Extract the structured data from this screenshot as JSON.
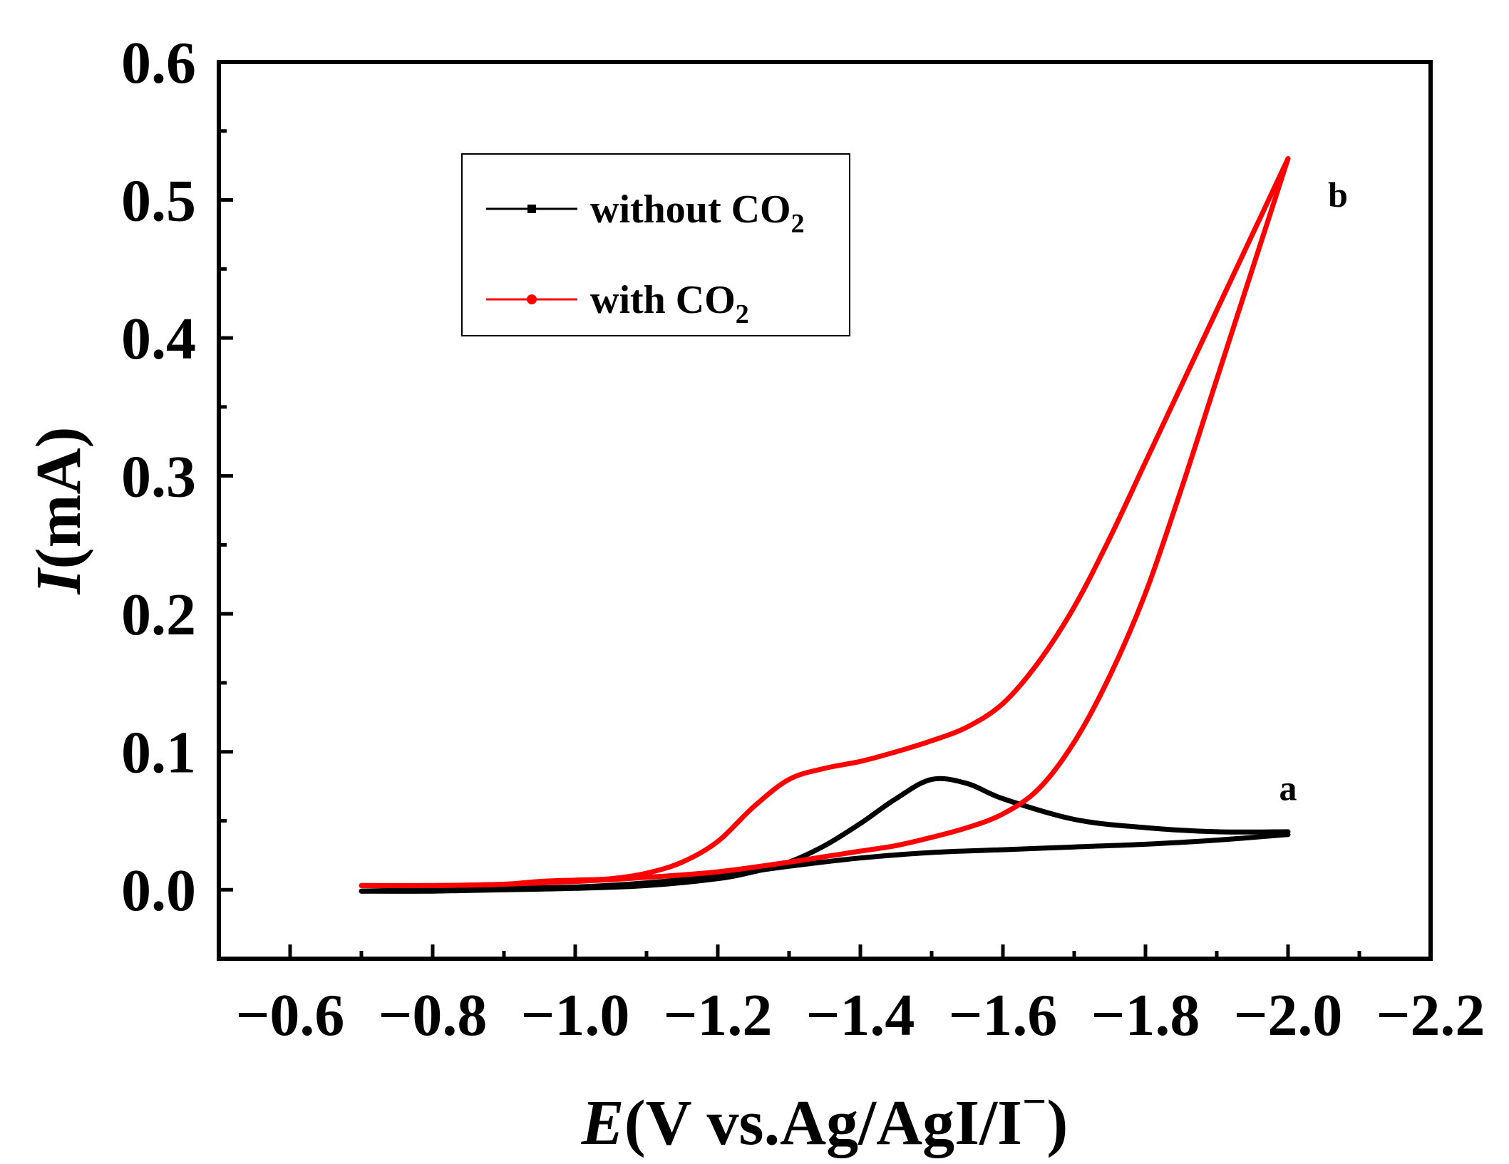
{
  "chart_data": {
    "type": "line",
    "title": "",
    "xlabel": {
      "italic": "E",
      "rest": "(V vs.Ag/AgI/I",
      "sup": "−",
      "close": ")"
    },
    "ylabel": {
      "italic": "I",
      "rest": "(mA)"
    },
    "xlim": [
      -0.5,
      -2.2
    ],
    "ylim": [
      -0.05,
      0.6
    ],
    "x_ticks": [
      -0.6,
      -0.8,
      -1.0,
      -1.2,
      -1.4,
      -1.6,
      -1.8,
      -2.0,
      -2.2
    ],
    "x_tick_labels": [
      "−0.6",
      "−0.8",
      "−1.0",
      "−1.2",
      "−1.4",
      "−1.6",
      "−1.8",
      "−2.0",
      "−2.2"
    ],
    "y_ticks": [
      0.0,
      0.1,
      0.2,
      0.3,
      0.4,
      0.5,
      0.6
    ],
    "y_tick_labels": [
      "0.0",
      "0.1",
      "0.2",
      "0.3",
      "0.4",
      "0.5",
      "0.6"
    ],
    "grid": false,
    "legend": {
      "placement": "top-center",
      "entries": [
        {
          "text": "without CO",
          "sub": "2",
          "series": "without"
        },
        {
          "text": "with CO",
          "sub": "2",
          "series": "with"
        }
      ]
    },
    "series": [
      {
        "name": "without CO2",
        "label": "a",
        "color": "#000000",
        "forward": {
          "x": [
            -0.7,
            -0.8,
            -0.9,
            -1.0,
            -1.1,
            -1.2,
            -1.25,
            -1.3,
            -1.35,
            -1.4,
            -1.45,
            -1.5,
            -1.55,
            -1.6,
            -1.7,
            -1.8,
            -1.9,
            -2.0
          ],
          "y": [
            -0.001,
            -0.001,
            0.0,
            0.001,
            0.003,
            0.008,
            0.013,
            0.02,
            0.032,
            0.048,
            0.066,
            0.08,
            0.077,
            0.066,
            0.051,
            0.045,
            0.042,
            0.042
          ]
        },
        "reverse": {
          "x": [
            -2.0,
            -1.9,
            -1.8,
            -1.7,
            -1.6,
            -1.5,
            -1.4,
            -1.3,
            -1.2,
            -1.1,
            -1.0,
            -0.9,
            -0.8,
            -0.7
          ],
          "y": [
            0.04,
            0.036,
            0.033,
            0.031,
            0.029,
            0.027,
            0.023,
            0.017,
            0.01,
            0.005,
            0.002,
            0.001,
            0.0,
            -0.001
          ]
        }
      },
      {
        "name": "with CO2",
        "label": "b",
        "color": "#ff0000",
        "forward": {
          "x": [
            -0.7,
            -0.8,
            -0.9,
            -0.95,
            -1.0,
            -1.05,
            -1.1,
            -1.15,
            -1.2,
            -1.25,
            -1.3,
            -1.35,
            -1.4,
            -1.45,
            -1.5,
            -1.55,
            -1.6,
            -1.65,
            -1.7,
            -1.75,
            -1.8,
            -1.85,
            -1.9,
            -1.95,
            -2.0
          ],
          "y": [
            0.003,
            0.003,
            0.004,
            0.006,
            0.007,
            0.008,
            0.012,
            0.02,
            0.035,
            0.06,
            0.08,
            0.088,
            0.093,
            0.1,
            0.108,
            0.118,
            0.135,
            0.165,
            0.205,
            0.255,
            0.31,
            0.365,
            0.42,
            0.475,
            0.53
          ]
        },
        "reverse": {
          "x": [
            -2.0,
            -1.95,
            -1.9,
            -1.85,
            -1.8,
            -1.75,
            -1.7,
            -1.65,
            -1.6,
            -1.55,
            -1.5,
            -1.45,
            -1.4,
            -1.35,
            -1.3,
            -1.2,
            -1.1,
            -1.0,
            -0.9,
            -0.8,
            -0.7
          ],
          "y": [
            0.53,
            0.45,
            0.37,
            0.29,
            0.215,
            0.155,
            0.107,
            0.073,
            0.055,
            0.045,
            0.038,
            0.032,
            0.028,
            0.024,
            0.02,
            0.013,
            0.009,
            0.006,
            0.004,
            0.003,
            0.003
          ]
        }
      }
    ],
    "annotations": [
      {
        "text": "a",
        "x": -2.0,
        "y": 0.065
      },
      {
        "text": "b",
        "x": -2.07,
        "y": 0.495
      }
    ]
  }
}
